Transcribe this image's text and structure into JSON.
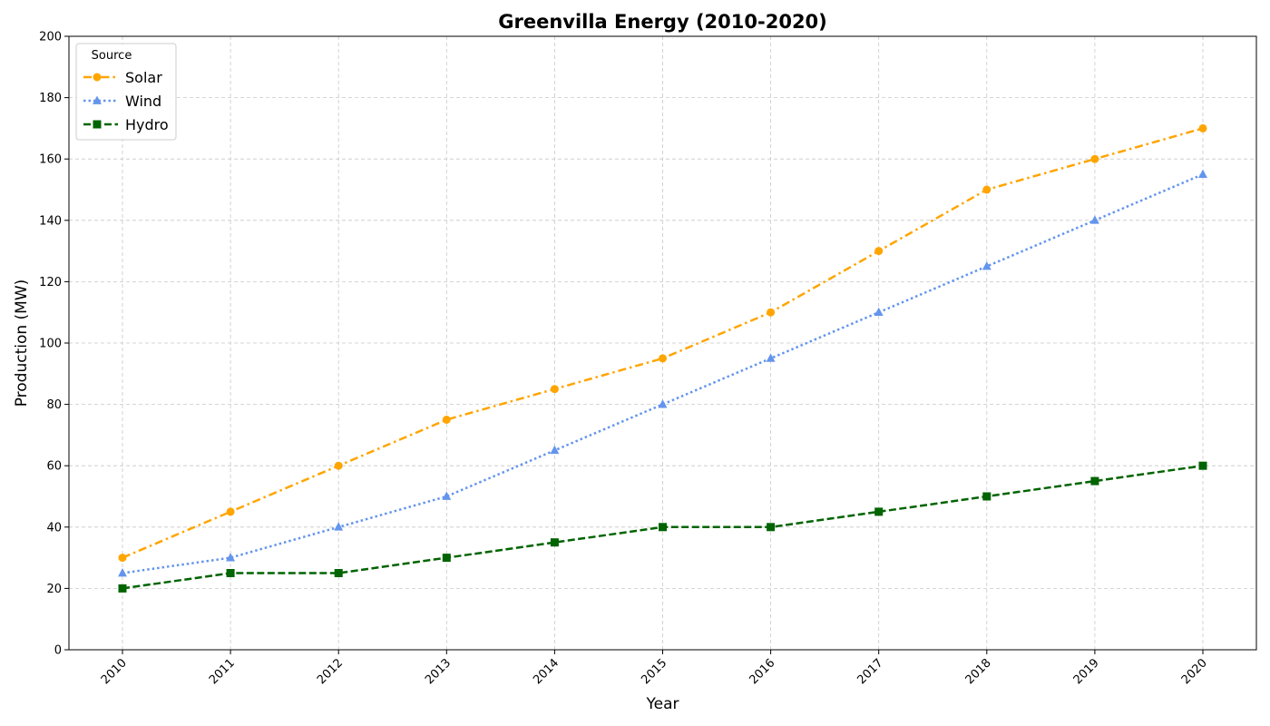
{
  "chart_data": {
    "type": "line",
    "title": "Greenvilla Energy (2010-2020)",
    "xlabel": "Year",
    "ylabel": "Production (MW)",
    "categories": [
      "2010",
      "2011",
      "2012",
      "2013",
      "2014",
      "2015",
      "2016",
      "2017",
      "2018",
      "2019",
      "2020"
    ],
    "ylim": [
      0,
      200
    ],
    "yticks": [
      0,
      20,
      40,
      60,
      80,
      100,
      120,
      140,
      160,
      180,
      200
    ],
    "grid": true,
    "legend": {
      "title": "Source",
      "placement": "top-left"
    },
    "series": [
      {
        "name": "Solar",
        "color": "#FFA500",
        "marker": "circle",
        "line_style": "dash-dot",
        "values": [
          30,
          45,
          60,
          75,
          85,
          95,
          110,
          130,
          150,
          160,
          170
        ]
      },
      {
        "name": "Wind",
        "color": "#6495ED",
        "marker": "triangle",
        "line_style": "dotted",
        "values": [
          25,
          30,
          40,
          50,
          65,
          80,
          95,
          110,
          125,
          140,
          155
        ]
      },
      {
        "name": "Hydro",
        "color": "#006400",
        "marker": "square",
        "line_style": "dashed",
        "values": [
          20,
          25,
          25,
          30,
          35,
          40,
          40,
          45,
          50,
          55,
          60
        ]
      }
    ]
  }
}
